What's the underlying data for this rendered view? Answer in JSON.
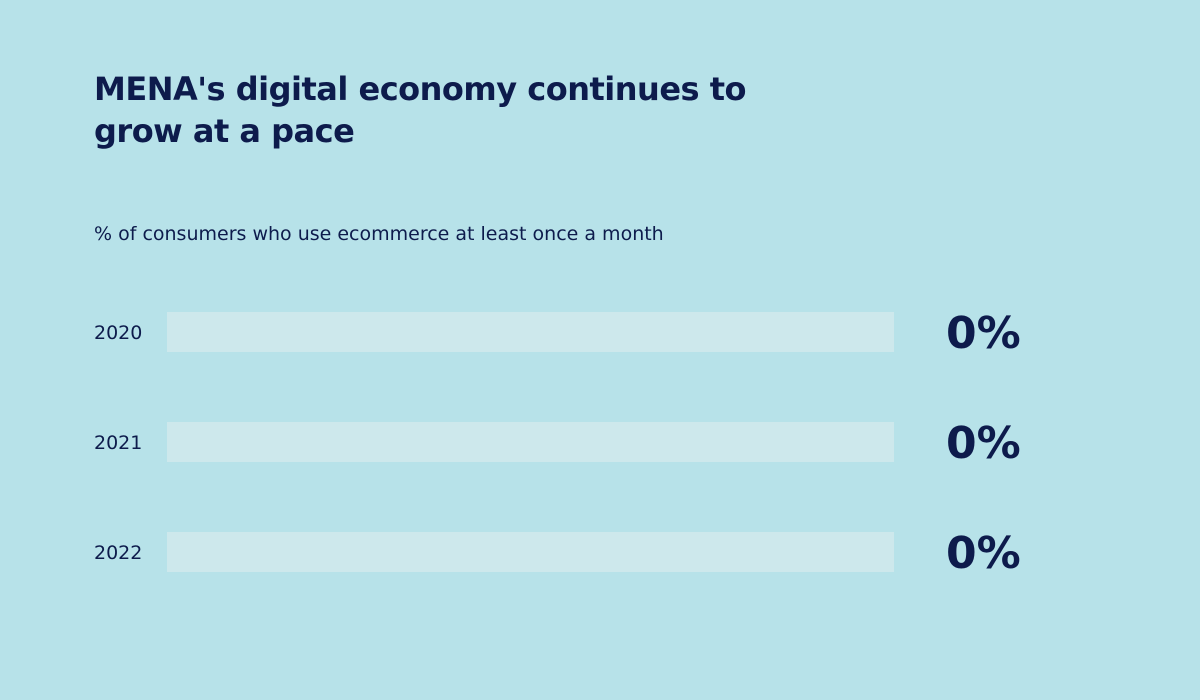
{
  "colors": {
    "background": "#b7e2e9",
    "track": "#cde8ec",
    "fill": "#0d1b4c",
    "text": "#0d1b4c"
  },
  "chart_data": {
    "type": "bar",
    "orientation": "horizontal",
    "title": "MENA's digital economy continues to grow at a pace",
    "subtitle": "% of consumers who use ecommerce at least once a month",
    "categories": [
      "2020",
      "2021",
      "2022"
    ],
    "values": [
      0,
      0,
      0
    ],
    "value_labels": [
      "0%",
      "0%",
      "0%"
    ],
    "xlim": [
      0,
      100
    ],
    "grid": false,
    "legend": "none"
  }
}
